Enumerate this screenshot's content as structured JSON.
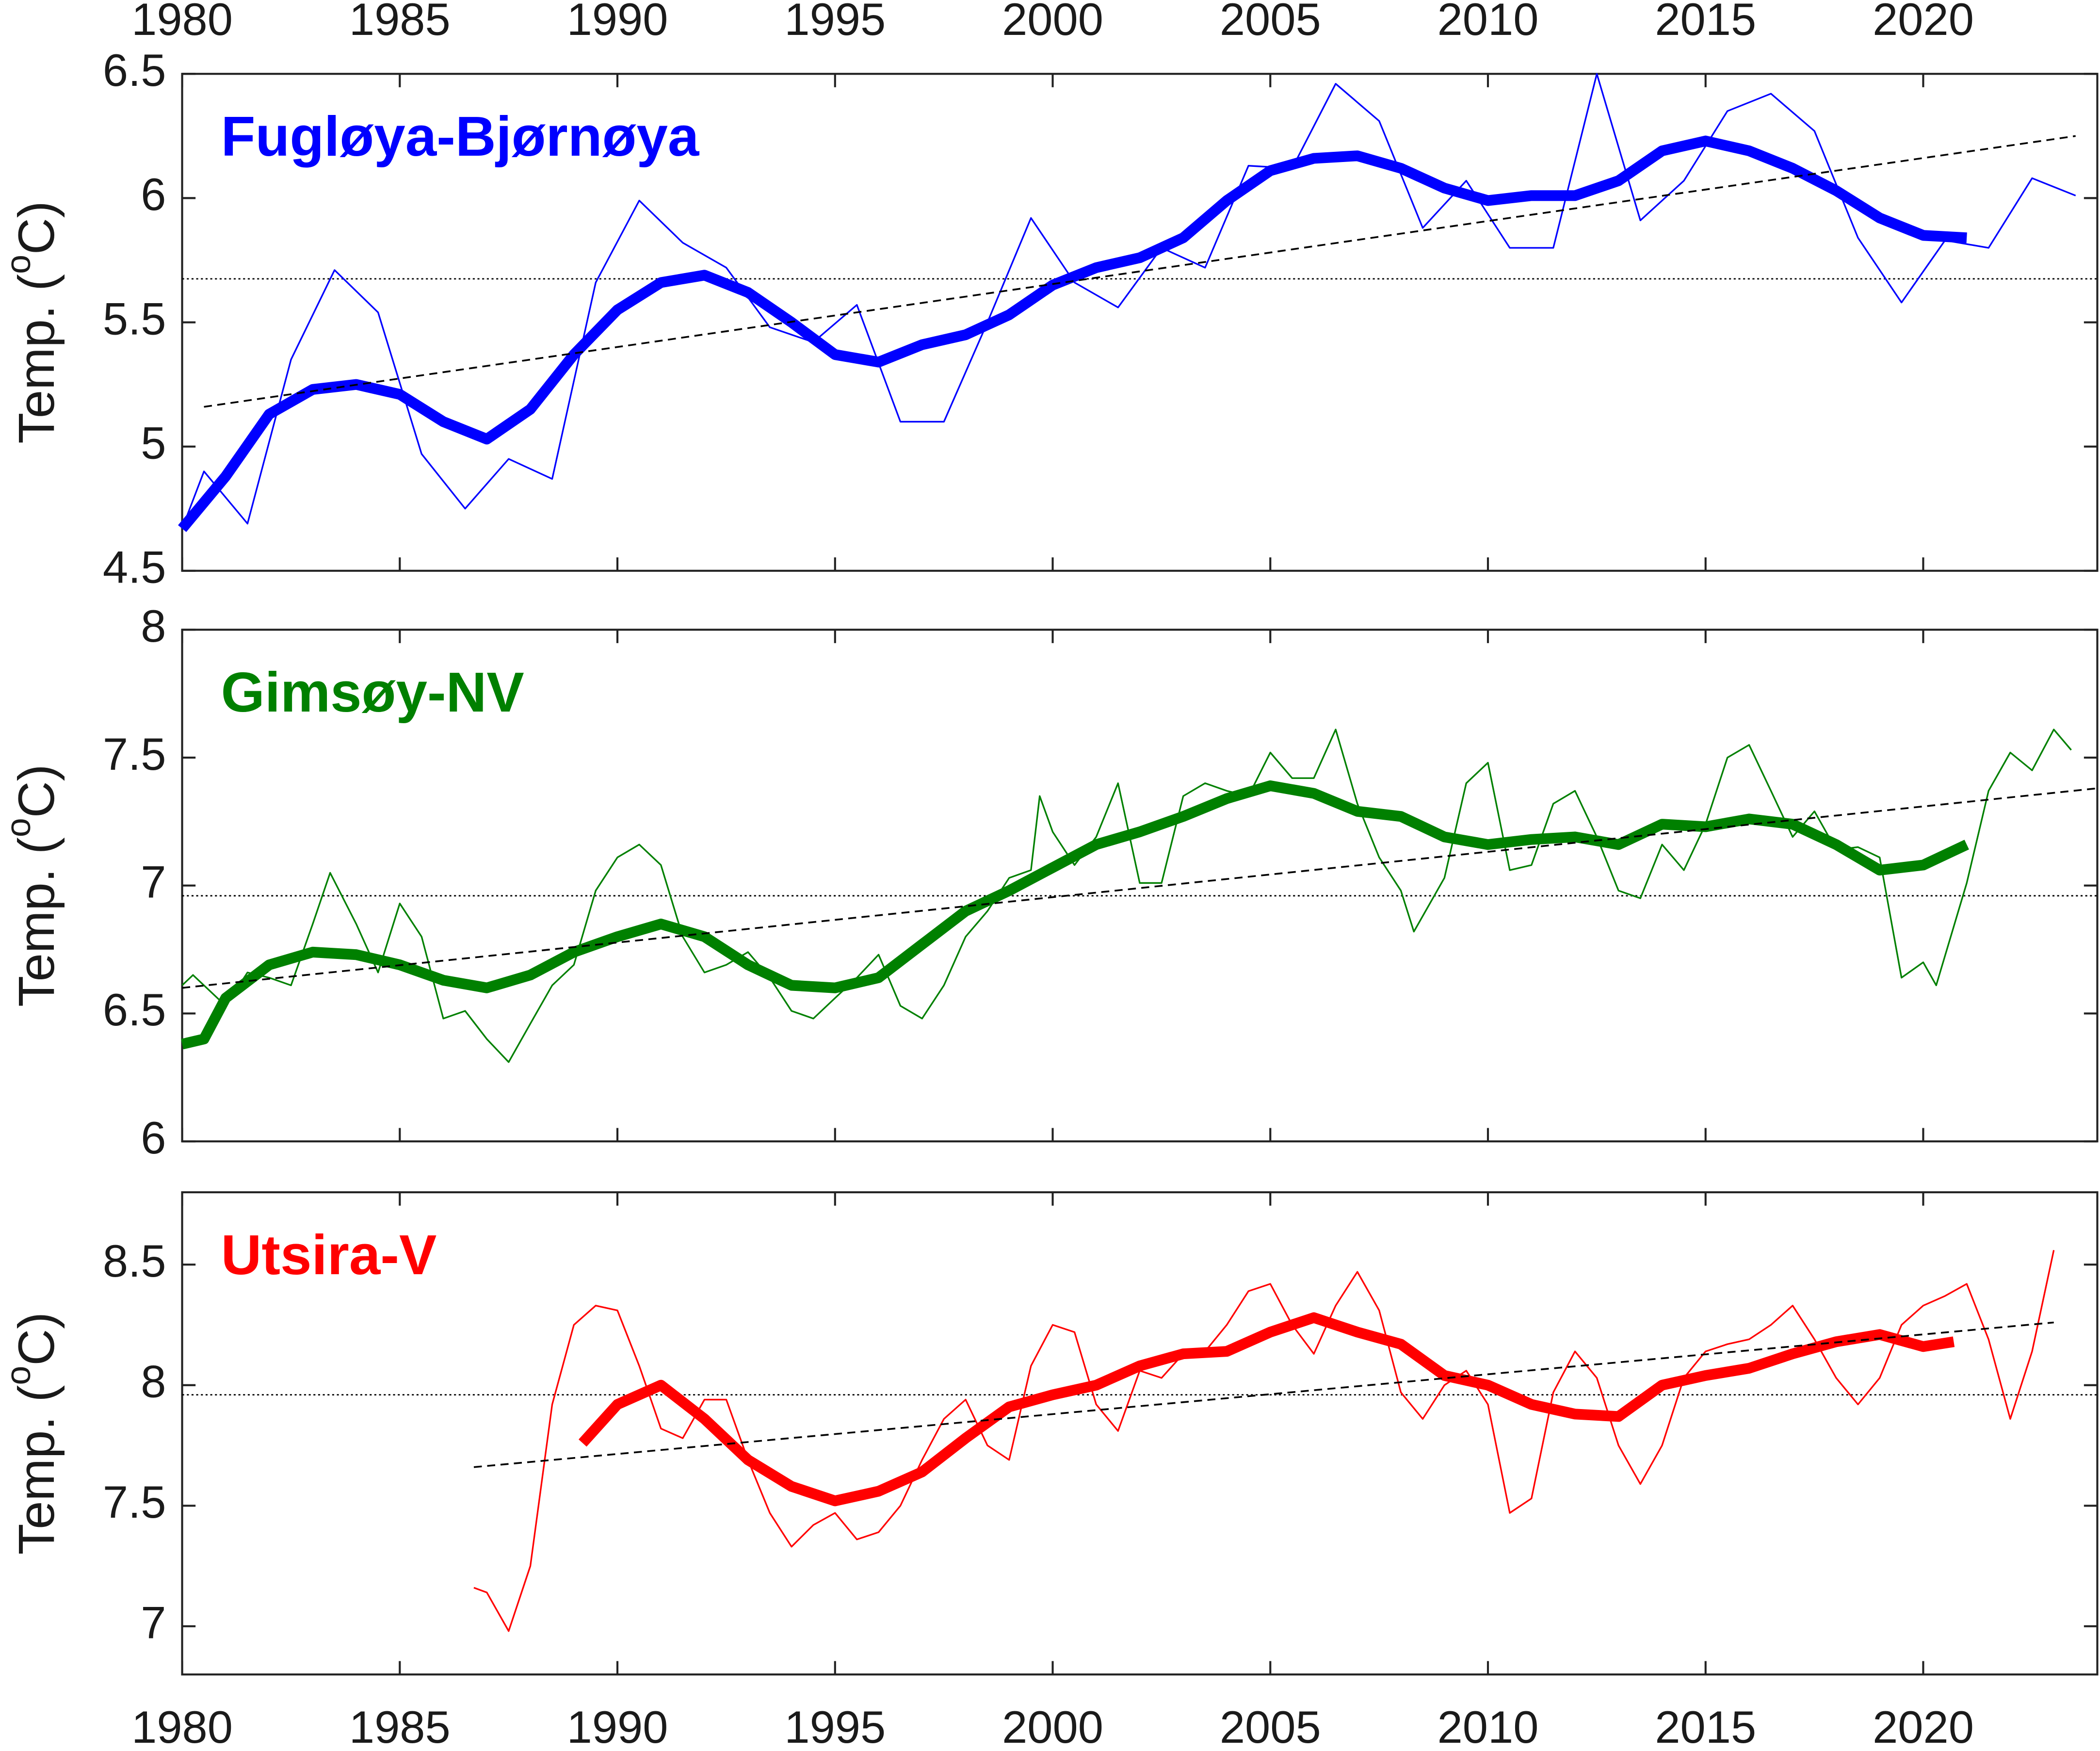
{
  "chart_data": [
    {
      "type": "line",
      "title": "Fugløya-Bjørnøya",
      "title_color": "#0000ff",
      "ylabel": [
        "Temp. (",
        "o",
        "C)"
      ],
      "xlim": [
        1980,
        2024
      ],
      "ylim": [
        4.5,
        6.5
      ],
      "xticks": [
        1980,
        1985,
        1990,
        1995,
        2000,
        2005,
        2010,
        2015,
        2020
      ],
      "xtick_labels": "top",
      "yticks": [
        4.5,
        5,
        5.5,
        6,
        6.5
      ],
      "hline": 5.675,
      "series": [
        {
          "color": "#0000ff",
          "style": "thin",
          "x": [
            1980,
            1980.5,
            1981.5,
            1982.5,
            1983.5,
            1984.5,
            1985.5,
            1986.5,
            1987.5,
            1988.5,
            1989.5,
            1990.5,
            1991.5,
            1992.5,
            1993.5,
            1994.5,
            1995.5,
            1996.5,
            1997.5,
            1998.5,
            1999.5,
            2000.5,
            2001.5,
            2002.5,
            2003.5,
            2004.5,
            2005.5,
            2006.5,
            2007.5,
            2008.5,
            2009.5,
            2010.5,
            2011.5,
            2012.5,
            2013.5,
            2014.5,
            2015.5,
            2016.5,
            2017.5,
            2018.5,
            2019.5,
            2020.5,
            2021.5,
            2022.5,
            2023.5
          ],
          "values": [
            4.67,
            4.9,
            4.69,
            5.35,
            5.71,
            5.54,
            4.97,
            4.75,
            4.95,
            4.87,
            5.66,
            5.99,
            5.82,
            5.72,
            5.48,
            5.42,
            5.57,
            5.1,
            5.1,
            5.5,
            5.92,
            5.66,
            5.56,
            5.8,
            5.72,
            6.13,
            6.12,
            6.46,
            6.31,
            5.88,
            6.07,
            5.8,
            5.8,
            6.5,
            5.91,
            6.07,
            6.35,
            6.42,
            6.27,
            5.84,
            5.58,
            5.83,
            5.8,
            6.08,
            6.01
          ]
        },
        {
          "color": "#0000ff",
          "style": "thick",
          "x": [
            1980,
            1981,
            1982,
            1983,
            1984,
            1985,
            1986,
            1987,
            1988,
            1989,
            1990,
            1991,
            1992,
            1993,
            1994,
            1995,
            1996,
            1997,
            1998,
            1999,
            2000,
            2001,
            2002,
            2003,
            2004,
            2005,
            2006,
            2007,
            2008,
            2009,
            2010,
            2011,
            2012,
            2013,
            2014,
            2015,
            2016,
            2017,
            2018,
            2019,
            2020,
            2021
          ],
          "values": [
            4.67,
            4.88,
            5.13,
            5.23,
            5.25,
            5.21,
            5.1,
            5.03,
            5.15,
            5.37,
            5.55,
            5.66,
            5.69,
            5.62,
            5.5,
            5.37,
            5.34,
            5.41,
            5.45,
            5.53,
            5.65,
            5.72,
            5.76,
            5.84,
            5.99,
            6.11,
            6.16,
            6.17,
            6.12,
            6.04,
            5.99,
            6.01,
            6.01,
            6.07,
            6.19,
            6.23,
            6.19,
            6.12,
            6.03,
            5.92,
            5.85,
            5.84
          ]
        },
        {
          "color": "#000000",
          "style": "dashed",
          "x": [
            1980.5,
            2023.5
          ],
          "values": [
            5.16,
            6.25
          ]
        }
      ]
    },
    {
      "type": "line",
      "title": "Gimsøy-NV",
      "title_color": "#008000",
      "ylabel": [
        "Temp. (",
        "o",
        "C)"
      ],
      "xlim": [
        1980,
        2024
      ],
      "ylim": [
        6,
        8
      ],
      "xticks": [
        1980,
        1985,
        1990,
        1995,
        2000,
        2005,
        2010,
        2015,
        2020
      ],
      "xtick_labels": "none",
      "yticks": [
        6,
        6.5,
        7,
        7.5,
        8
      ],
      "hline": 6.96,
      "series": [
        {
          "color": "#008000",
          "style": "thin",
          "x": [
            1980,
            1980.25,
            1981,
            1981.5,
            1982,
            1982.5,
            1983,
            1983.4,
            1984,
            1984.5,
            1985,
            1985.5,
            1986,
            1986.5,
            1987,
            1987.5,
            1988,
            1988.5,
            1989,
            1989.5,
            1990,
            1990.5,
            1991,
            1991.5,
            1992,
            1992.5,
            1993,
            1993.5,
            1994,
            1994.5,
            1995,
            1995.5,
            1996,
            1996.5,
            1997,
            1997.5,
            1998,
            1998.5,
            1999,
            1999.5,
            1999.7,
            2000,
            2000.5,
            2001,
            2001.5,
            2002,
            2002.5,
            2003,
            2003.5,
            2004,
            2004.5,
            2005,
            2005.5,
            2006,
            2006.5,
            2007,
            2007.5,
            2008,
            2008.3,
            2009,
            2009.5,
            2010,
            2010.5,
            2011,
            2011.5,
            2012,
            2012.5,
            2013,
            2013.5,
            2014,
            2014.5,
            2015,
            2015.5,
            2016,
            2016.5,
            2017,
            2017.5,
            2018,
            2018.5,
            2019,
            2019.5,
            2020,
            2020.3,
            2021,
            2021.5,
            2022,
            2022.5,
            2023,
            2023.4
          ],
          "values": [
            6.61,
            6.65,
            6.53,
            6.66,
            6.64,
            6.61,
            6.85,
            7.05,
            6.85,
            6.66,
            6.93,
            6.8,
            6.48,
            6.51,
            6.4,
            6.31,
            6.46,
            6.61,
            6.69,
            6.98,
            7.11,
            7.16,
            7.08,
            6.8,
            6.66,
            6.69,
            6.74,
            6.64,
            6.51,
            6.48,
            6.56,
            6.64,
            6.73,
            6.53,
            6.48,
            6.61,
            6.8,
            6.9,
            7.03,
            7.06,
            7.35,
            7.21,
            7.08,
            7.19,
            7.4,
            7.01,
            7.01,
            7.35,
            7.4,
            7.37,
            7.35,
            7.52,
            7.42,
            7.42,
            7.61,
            7.32,
            7.11,
            6.98,
            6.82,
            7.03,
            7.4,
            7.48,
            7.06,
            7.08,
            7.32,
            7.37,
            7.19,
            6.98,
            6.95,
            7.16,
            7.06,
            7.24,
            7.5,
            7.55,
            7.37,
            7.19,
            7.29,
            7.14,
            7.15,
            7.11,
            6.64,
            6.7,
            6.61,
            7.01,
            7.37,
            7.52,
            7.45,
            7.61,
            7.53
          ]
        },
        {
          "color": "#008000",
          "style": "thick",
          "x": [
            1980,
            1980.5,
            1981,
            1982,
            1983,
            1984,
            1985,
            1986,
            1987,
            1988,
            1989,
            1990,
            1991,
            1992,
            1993,
            1994,
            1995,
            1996,
            1997,
            1998,
            1999,
            2000,
            2001,
            2002,
            2003,
            2004,
            2005,
            2006,
            2007,
            2008,
            2009,
            2010,
            2011,
            2012,
            2013,
            2014,
            2015,
            2016,
            2017,
            2018,
            2019,
            2020,
            2021
          ],
          "values": [
            6.38,
            6.4,
            6.56,
            6.69,
            6.74,
            6.73,
            6.69,
            6.63,
            6.6,
            6.65,
            6.74,
            6.8,
            6.85,
            6.8,
            6.69,
            6.61,
            6.6,
            6.64,
            6.77,
            6.9,
            6.98,
            7.07,
            7.16,
            7.21,
            7.27,
            7.34,
            7.39,
            7.36,
            7.29,
            7.27,
            7.19,
            7.16,
            7.18,
            7.19,
            7.16,
            7.24,
            7.23,
            7.26,
            7.24,
            7.16,
            7.06,
            7.08,
            7.16
          ]
        },
        {
          "color": "#000000",
          "style": "dashed",
          "x": [
            1980,
            2024
          ],
          "values": [
            6.6,
            7.38
          ]
        }
      ]
    },
    {
      "type": "line",
      "title": "Utsira-V",
      "title_color": "#ff0000",
      "ylabel": [
        "Temp. (",
        "o",
        "C)"
      ],
      "xlim": [
        1980,
        2024
      ],
      "ylim": [
        6.8,
        8.8
      ],
      "xticks": [
        1980,
        1985,
        1990,
        1995,
        2000,
        2005,
        2010,
        2015,
        2020
      ],
      "xtick_labels": "bottom",
      "yticks": [
        7,
        7.5,
        8,
        8.5
      ],
      "hline": 7.96,
      "series": [
        {
          "color": "#ff0000",
          "style": "thin",
          "x": [
            1986.7,
            1987,
            1987.5,
            1988,
            1988.5,
            1989,
            1989.5,
            1990,
            1990.5,
            1991,
            1991.5,
            1992,
            1992.5,
            1993,
            1993.5,
            1994,
            1994.5,
            1995,
            1995.5,
            1996,
            1996.5,
            1997,
            1997.5,
            1998,
            1998.5,
            1999,
            1999.5,
            2000,
            2000.5,
            2001,
            2001.5,
            2002,
            2002.5,
            2003,
            2003.5,
            2004,
            2004.5,
            2005,
            2005.5,
            2006,
            2006.5,
            2007,
            2007.5,
            2008,
            2008.5,
            2009,
            2009.5,
            2010,
            2010.5,
            2011,
            2011.5,
            2012,
            2012.5,
            2013,
            2013.5,
            2014,
            2014.5,
            2015,
            2015.5,
            2016,
            2016.5,
            2017,
            2017.5,
            2018,
            2018.5,
            2019,
            2019.5,
            2020,
            2020.5,
            2021,
            2021.5,
            2022,
            2022.5,
            2023
          ],
          "values": [
            7.16,
            7.14,
            6.98,
            7.25,
            7.92,
            8.25,
            8.33,
            8.31,
            8.08,
            7.82,
            7.78,
            7.94,
            7.94,
            7.69,
            7.47,
            7.33,
            7.42,
            7.47,
            7.36,
            7.39,
            7.5,
            7.69,
            7.86,
            7.94,
            7.75,
            7.69,
            8.08,
            8.25,
            8.22,
            7.92,
            7.81,
            8.06,
            8.03,
            8.13,
            8.14,
            8.25,
            8.39,
            8.42,
            8.25,
            8.13,
            8.33,
            8.47,
            8.31,
            7.97,
            7.86,
            8.0,
            8.06,
            7.92,
            7.47,
            7.53,
            7.97,
            8.14,
            8.03,
            7.75,
            7.59,
            7.75,
            8.03,
            8.14,
            8.17,
            8.19,
            8.25,
            8.33,
            8.19,
            8.03,
            7.92,
            8.03,
            8.25,
            8.33,
            8.37,
            8.42,
            8.19,
            7.86,
            8.14,
            8.56
          ]
        },
        {
          "color": "#ff0000",
          "style": "thick",
          "x": [
            1989.2,
            1990,
            1991,
            1992,
            1993,
            1994,
            1995,
            1996,
            1997,
            1998,
            1999,
            2000,
            2001,
            2002,
            2003,
            2004,
            2005,
            2006,
            2007,
            2008,
            2009,
            2010,
            2011,
            2012,
            2013,
            2014,
            2015,
            2016,
            2017,
            2018,
            2019,
            2020,
            2020.7
          ],
          "values": [
            7.76,
            7.92,
            8.0,
            7.86,
            7.69,
            7.58,
            7.52,
            7.56,
            7.64,
            7.78,
            7.91,
            7.96,
            8.0,
            8.08,
            8.13,
            8.14,
            8.22,
            8.28,
            8.22,
            8.17,
            8.04,
            8.0,
            7.92,
            7.88,
            7.87,
            8.0,
            8.04,
            8.07,
            8.13,
            8.18,
            8.21,
            8.16,
            8.18
          ]
        },
        {
          "color": "#000000",
          "style": "dashed",
          "x": [
            1986.7,
            2023
          ],
          "values": [
            7.66,
            8.26
          ]
        }
      ]
    }
  ]
}
